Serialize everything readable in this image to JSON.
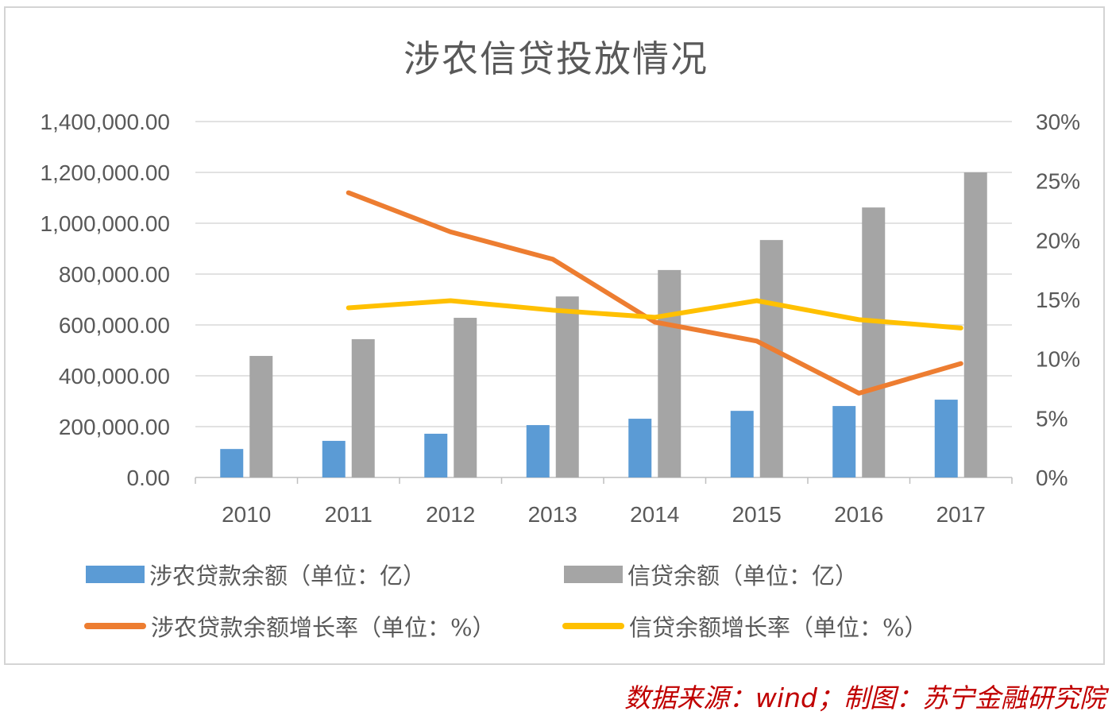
{
  "chart_data": {
    "type": "bar",
    "title": "涉农信贷投放情况",
    "xlabel": "",
    "ylabel": "",
    "categories": [
      "2010",
      "2011",
      "2012",
      "2013",
      "2014",
      "2015",
      "2016",
      "2017"
    ],
    "series": [
      {
        "name": "涉农贷款余额（单位：亿）",
        "type": "bar",
        "axis": "left",
        "color": "#5b9bd5",
        "values": [
          112000,
          144000,
          172000,
          206000,
          231000,
          262000,
          281000,
          306000
        ]
      },
      {
        "name": "信贷余额（单位：亿）",
        "type": "bar",
        "axis": "left",
        "color": "#a5a5a5",
        "values": [
          478000,
          544000,
          628000,
          712000,
          816000,
          934000,
          1062000,
          1200000
        ]
      },
      {
        "name": "涉农贷款余额增长率（单位：%）",
        "type": "line",
        "axis": "right",
        "color": "#ed7d31",
        "values": [
          null,
          24.0,
          20.7,
          18.4,
          13.1,
          11.5,
          7.1,
          9.6
        ]
      },
      {
        "name": "信贷余额增长率（单位：%）",
        "type": "line",
        "axis": "right",
        "color": "#ffc000",
        "values": [
          null,
          14.3,
          14.9,
          14.1,
          13.5,
          14.9,
          13.3,
          12.6
        ]
      }
    ],
    "ylim": [
      0,
      1400000
    ],
    "y2lim": [
      0,
      30
    ],
    "left_ticks": [
      "0.00",
      "200,000.00",
      "400,000.00",
      "600,000.00",
      "800,000.00",
      "1,000,000.00",
      "1,200,000.00",
      "1,400,000.00"
    ],
    "right_ticks": [
      "0%",
      "5%",
      "10%",
      "15%",
      "20%",
      "25%",
      "30%"
    ],
    "grid": true,
    "legend_position": "bottom"
  },
  "legend": [
    {
      "label": "涉农贷款余额（单位：亿）",
      "color": "#5b9bd5",
      "kind": "bar"
    },
    {
      "label": "信贷余额（单位：亿）",
      "color": "#a5a5a5",
      "kind": "bar"
    },
    {
      "label": "涉农贷款余额增长率（单位：%）",
      "color": "#ed7d31",
      "kind": "line"
    },
    {
      "label": "信贷余额增长率（单位：%）",
      "color": "#ffc000",
      "kind": "line"
    }
  ],
  "source_note": "数据来源：wind；制图：苏宁金融研究院"
}
